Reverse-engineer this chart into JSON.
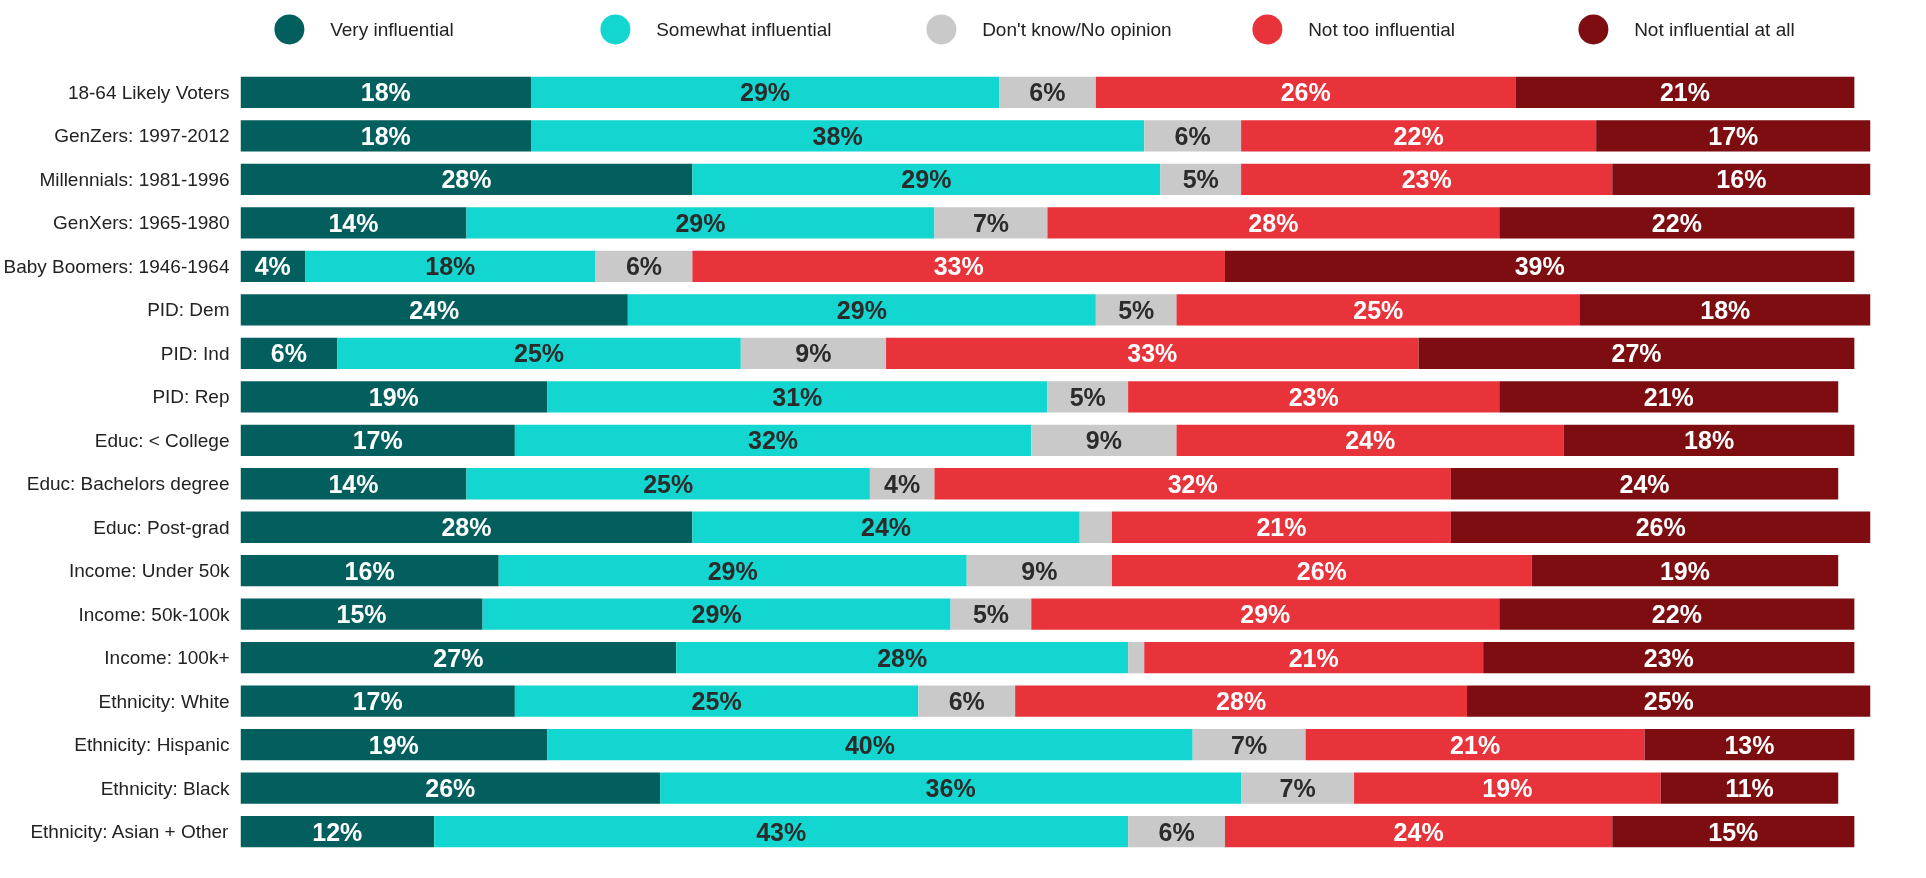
{
  "chart_data": {
    "type": "bar",
    "orientation": "horizontal",
    "stacked": true,
    "legend": "top",
    "grid": false,
    "tick_labels": "y",
    "categories": [
      "18-64 Likely Voters",
      "GenZers: 1997-2012",
      "Millennials: 1981-1996",
      "GenXers: 1965-1980",
      "Baby Boomers: 1946-1964",
      "PID: Dem",
      "PID: Ind",
      "PID: Rep",
      "Educ: < College",
      "Educ: Bachelors degree",
      "Educ: Post-grad",
      "Income: Under 50k",
      "Income: 50k-100k",
      "Income: 100k+",
      "Ethnicity: White",
      "Ethnicity: Hispanic",
      "Ethnicity: Black",
      "Ethnicity: Asian + Other"
    ],
    "series": [
      {
        "name": "Very influential",
        "color": "#035f5e",
        "values": [
          18,
          18,
          28,
          14,
          4,
          24,
          6,
          19,
          17,
          14,
          28,
          16,
          15,
          27,
          17,
          19,
          26,
          12
        ],
        "value_labels": [
          "18%",
          "18%",
          "28%",
          "14%",
          "4%",
          "24%",
          "6%",
          "19%",
          "17%",
          "14%",
          "28%",
          "16%",
          "15%",
          "27%",
          "17%",
          "19%",
          "26%",
          "12%"
        ]
      },
      {
        "name": "Somewhat influential",
        "color": "#12d6cf",
        "values": [
          29,
          38,
          29,
          29,
          18,
          29,
          25,
          31,
          32,
          25,
          24,
          29,
          29,
          28,
          25,
          40,
          36,
          43
        ],
        "value_labels": [
          "29%",
          "38%",
          "29%",
          "29%",
          "18%",
          "29%",
          "25%",
          "31%",
          "32%",
          "25%",
          "24%",
          "29%",
          "29%",
          "28%",
          "25%",
          "40%",
          "36%",
          "43%"
        ]
      },
      {
        "name": "Don't know/No opinion",
        "color": "#c9c9c9",
        "values": [
          6,
          6,
          5,
          7,
          6,
          5,
          9,
          5,
          9,
          4,
          2,
          9,
          5,
          1,
          6,
          7,
          7,
          6
        ],
        "value_labels": [
          "6%",
          "6%",
          "5%",
          "7%",
          "6%",
          "5%",
          "9%",
          "5%",
          "9%",
          "4%",
          null,
          "9%",
          "5%",
          null,
          "6%",
          "7%",
          "7%",
          "6%"
        ]
      },
      {
        "name": "Not too influential",
        "color": "#e8333a",
        "values": [
          26,
          22,
          23,
          28,
          33,
          25,
          33,
          23,
          24,
          32,
          21,
          26,
          29,
          21,
          28,
          21,
          19,
          24
        ],
        "value_labels": [
          "26%",
          "22%",
          "23%",
          "28%",
          "33%",
          "25%",
          "33%",
          "23%",
          "24%",
          "32%",
          "21%",
          "26%",
          "29%",
          "21%",
          "28%",
          "21%",
          "19%",
          "24%"
        ]
      },
      {
        "name": "Not influential at all",
        "color": "#7d0d10",
        "values": [
          21,
          17,
          16,
          22,
          39,
          18,
          27,
          21,
          18,
          24,
          26,
          19,
          22,
          23,
          25,
          13,
          11,
          15
        ],
        "value_labels": [
          "21%",
          "17%",
          "16%",
          "22%",
          "39%",
          "18%",
          "27%",
          "21%",
          "18%",
          "24%",
          "26%",
          "19%",
          "22%",
          "23%",
          "25%",
          "13%",
          "11%",
          "15%"
        ]
      }
    ]
  }
}
